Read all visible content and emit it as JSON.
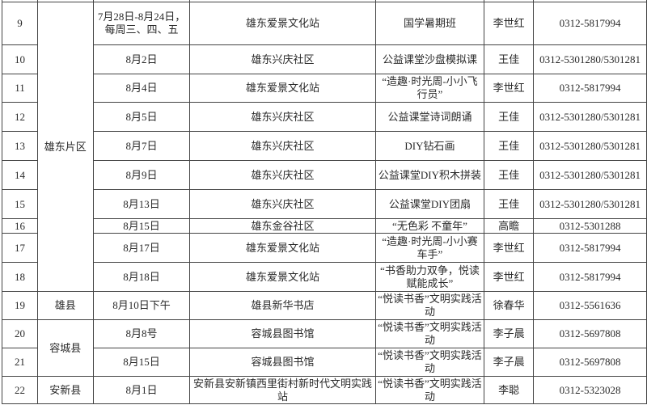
{
  "rows": [
    {
      "no": "9",
      "region": "雄东片区",
      "date": "7月28日-8月24日，每周三、四、五",
      "venue": "雄东爱景文化站",
      "activity": "国学暑期班",
      "contact": "李世红",
      "phone": "0312-5817994"
    },
    {
      "no": "10",
      "date": "8月2日",
      "venue": "雄东兴庆社区",
      "activity": "公益课堂沙盘模拟课",
      "contact": "王佳",
      "phone": "0312-5301280/5301281"
    },
    {
      "no": "11",
      "date": "8月4日",
      "venue": "雄东爱景文化站",
      "activity": "“造趣·时光周-小小飞行员”",
      "contact": "李世红",
      "phone": "0312-5817994"
    },
    {
      "no": "12",
      "date": "8月5日",
      "venue": "雄东兴庆社区",
      "activity": "公益课堂诗词朗诵",
      "contact": "王佳",
      "phone": "0312-5301280/5301281"
    },
    {
      "no": "13",
      "date": "8月7日",
      "venue": "雄东兴庆社区",
      "activity": "DIY钻石画",
      "contact": "王佳",
      "phone": "0312-5301280/5301281"
    },
    {
      "no": "14",
      "date": "8月9日",
      "venue": "雄东兴庆社区",
      "activity": "公益课堂DIY积木拼装",
      "contact": "王佳",
      "phone": "0312-5301280/5301281"
    },
    {
      "no": "15",
      "date": "8月13日",
      "venue": "雄东兴庆社区",
      "activity": "公益课堂DIY团扇",
      "contact": "王佳",
      "phone": "0312-5301280/5301281"
    },
    {
      "no": "16",
      "date": "8月15日",
      "venue": "雄东金谷社区",
      "activity": "“无色彩 不童年”",
      "contact": "高瞻",
      "phone": "0312-5301288"
    },
    {
      "no": "17",
      "date": "8月17日",
      "venue": "雄东爱景文化站",
      "activity": "“造趣·时光周-小小赛车手”",
      "contact": "李世红",
      "phone": "0312-5817994"
    },
    {
      "no": "18",
      "date": "8月18日",
      "venue": "雄东爱景文化站",
      "activity": "“书香助力双争，悦读赋能成长”",
      "contact": "李世红",
      "phone": "0312-5817994"
    },
    {
      "no": "19",
      "region": "雄县",
      "date": "8月10日下午",
      "venue": "雄县新华书店",
      "activity": "“悦读书香”文明实践活动",
      "contact": "徐春华",
      "phone": "0312-5561636"
    },
    {
      "no": "20",
      "region": "容城县",
      "date": "8月8号",
      "venue": "容城县图书馆",
      "activity": "“悦读书香”文明实践活动",
      "contact": "李子晨",
      "phone": "0312-5697808"
    },
    {
      "no": "21",
      "date": "8月15日",
      "venue": "容城县图书馆",
      "activity": "“悦读书香”文明实践活动",
      "contact": "李子晨",
      "phone": "0312-5697808"
    },
    {
      "no": "22",
      "region": "安新县",
      "date": "8月1日",
      "venue": "安新县安新镇西里街村新时代文明实践站",
      "activity": "“悦读书香”文明实践活动",
      "contact": "李聪",
      "phone": "0312-5323028"
    }
  ]
}
